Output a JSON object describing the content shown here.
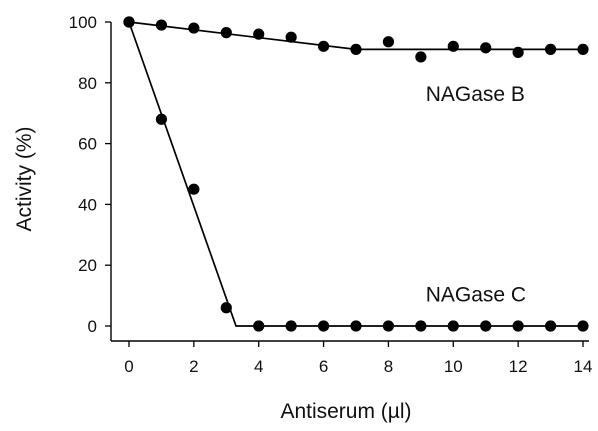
{
  "chart_data": {
    "type": "scatter",
    "xlabel": "Antiserum (µl)",
    "ylabel": "Activity (%)",
    "xlim": [
      0,
      14
    ],
    "ylim": [
      0,
      100
    ],
    "xticks": [
      0,
      2,
      4,
      6,
      8,
      10,
      12,
      14
    ],
    "yticks": [
      0,
      20,
      40,
      60,
      80,
      100
    ],
    "grid": false,
    "legend": "none",
    "colors": {
      "points": "#000000",
      "lines": "#000000",
      "axes": "#000000"
    },
    "series": [
      {
        "name": "NAGase B",
        "x": [
          0,
          1,
          2,
          3,
          4,
          5,
          6,
          7,
          8,
          9,
          10,
          11,
          12,
          13,
          14
        ],
        "y": [
          100,
          99,
          98,
          96.5,
          96,
          95,
          92,
          91,
          93.5,
          88.5,
          92,
          91.5,
          90,
          91,
          91
        ],
        "fit_line": [
          [
            0,
            100
          ],
          [
            7,
            91
          ],
          [
            14,
            91
          ]
        ]
      },
      {
        "name": "NAGase C",
        "x": [
          0,
          1,
          2,
          3,
          4,
          5,
          6,
          7,
          8,
          9,
          10,
          11,
          12,
          13,
          14
        ],
        "y": [
          100,
          68,
          45,
          6,
          0,
          0,
          0,
          0,
          0,
          0,
          0,
          0,
          0,
          0,
          0
        ],
        "fit_line": [
          [
            0,
            100
          ],
          [
            3.3,
            0
          ],
          [
            14,
            0
          ]
        ]
      }
    ]
  }
}
